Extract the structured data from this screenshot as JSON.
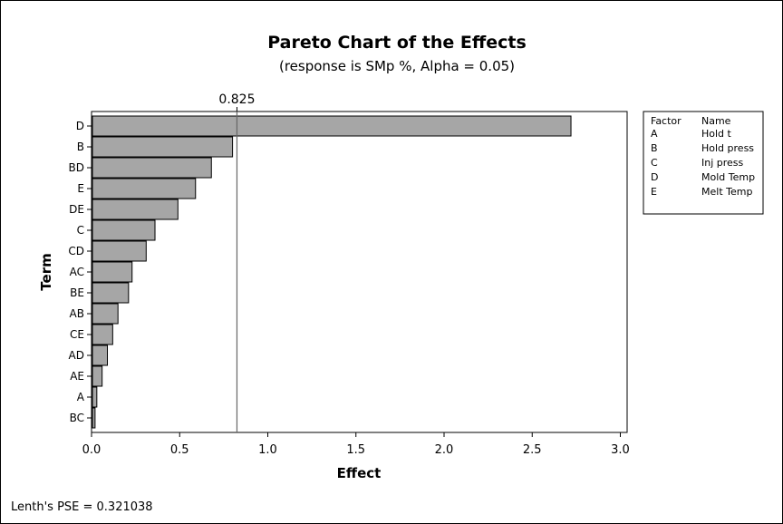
{
  "chart_data": {
    "type": "bar",
    "orientation": "horizontal",
    "title": "Pareto Chart of the Effects",
    "subtitle": "(response is SMp %, Alpha = 0.05)",
    "xlabel": "Effect",
    "ylabel": "Term",
    "xlim": [
      0,
      3.0
    ],
    "xticks": [
      "0.0",
      "0.5",
      "1.0",
      "1.5",
      "2.0",
      "2.5",
      "3.0"
    ],
    "categories": [
      "D",
      "B",
      "BD",
      "E",
      "DE",
      "C",
      "CD",
      "AC",
      "BE",
      "AB",
      "CE",
      "AD",
      "AE",
      "A",
      "BC"
    ],
    "values": [
      2.72,
      0.8,
      0.68,
      0.59,
      0.49,
      0.36,
      0.31,
      0.23,
      0.21,
      0.15,
      0.12,
      0.09,
      0.06,
      0.03,
      0.02
    ],
    "reference_line": {
      "value": 0.825,
      "label": "0.825"
    },
    "bar_color": "#a6a6a6",
    "legend": {
      "placement": "right",
      "headers": [
        "Factor",
        "Name"
      ],
      "entries": [
        {
          "factor": "A",
          "name": "Hold t"
        },
        {
          "factor": "B",
          "name": "Hold press"
        },
        {
          "factor": "C",
          "name": "Inj press"
        },
        {
          "factor": "D",
          "name": "Mold Temp"
        },
        {
          "factor": "E",
          "name": "Melt Temp"
        }
      ]
    },
    "footer": "Lenth's PSE = 0.321038"
  }
}
